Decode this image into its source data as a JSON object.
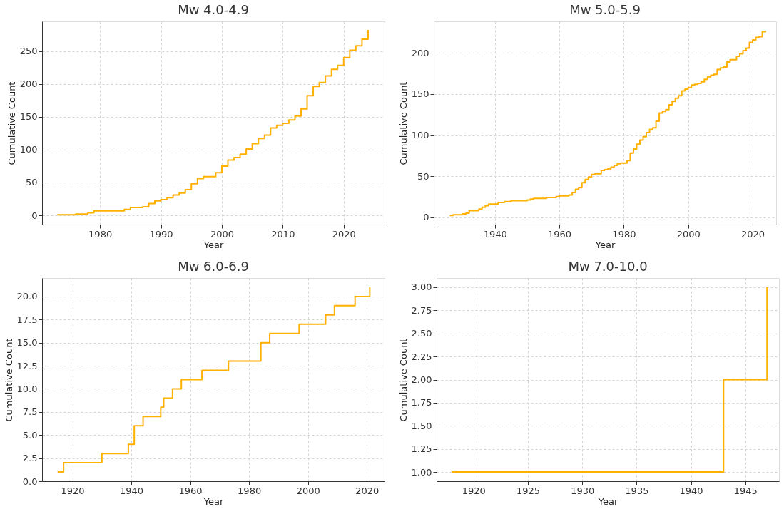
{
  "chart_data": [
    {
      "type": "step",
      "title": "Mw 4.0-4.9",
      "xlabel": "Year",
      "ylabel": "Cumulative Count",
      "color": "#ffb000",
      "grid": true,
      "x": [
        1973,
        1976,
        1978,
        1979,
        1984,
        1985,
        1987,
        1988,
        1989,
        1990,
        1991,
        1992,
        1993,
        1994,
        1995,
        1996,
        1997,
        1999,
        2000,
        2001,
        2002,
        2003,
        2004,
        2005,
        2006,
        2007,
        2008,
        2009,
        2010,
        2011,
        2012,
        2013,
        2014,
        2015,
        2016,
        2017,
        2018,
        2019,
        2020,
        2021,
        2022,
        2023,
        2024
      ],
      "values": [
        1,
        2,
        4,
        7,
        9,
        12,
        13,
        18,
        22,
        24,
        27,
        31,
        34,
        39,
        48,
        56,
        59,
        65,
        75,
        84,
        88,
        93,
        101,
        109,
        117,
        122,
        133,
        137,
        140,
        145,
        151,
        162,
        182,
        196,
        202,
        212,
        222,
        228,
        240,
        251,
        258,
        268,
        282
      ],
      "xlim": [
        1970.5,
        2026.7
      ],
      "ylim": [
        -14,
        295
      ],
      "xticks": [
        1980,
        1990,
        2000,
        2010,
        2020
      ],
      "yticks": [
        0,
        50,
        100,
        150,
        200,
        250
      ]
    },
    {
      "type": "step",
      "title": "Mw 5.0-5.9",
      "xlabel": "Year",
      "ylabel": "Cumulative Count",
      "color": "#ffb000",
      "grid": true,
      "x": [
        1926,
        1927,
        1930,
        1931,
        1932,
        1935,
        1936,
        1937,
        1938,
        1941,
        1943,
        1945,
        1950,
        1951,
        1952,
        1956,
        1959,
        1960,
        1963,
        1964,
        1965,
        1966,
        1967,
        1968,
        1969,
        1970,
        1971,
        1973,
        1974,
        1975,
        1976,
        1977,
        1978,
        1979,
        1981,
        1982,
        1983,
        1984,
        1985,
        1986,
        1987,
        1988,
        1989,
        1990,
        1991,
        1992,
        1993,
        1994,
        1995,
        1996,
        1997,
        1998,
        1999,
        2000,
        2001,
        2002,
        2003,
        2004,
        2005,
        2006,
        2007,
        2008,
        2009,
        2010,
        2011,
        2012,
        2013,
        2015,
        2016,
        2017,
        2018,
        2019,
        2020,
        2021,
        2022,
        2023,
        2024
      ],
      "values": [
        2,
        3,
        4,
        5,
        8,
        10,
        12,
        14,
        16,
        18,
        19,
        20,
        21,
        22,
        23,
        24,
        25,
        26,
        27,
        30,
        34,
        36,
        42,
        46,
        49,
        52,
        53,
        57,
        58,
        59,
        61,
        63,
        65,
        66,
        69,
        78,
        83,
        89,
        94,
        98,
        103,
        107,
        109,
        117,
        127,
        129,
        131,
        137,
        141,
        145,
        148,
        154,
        156,
        158,
        161,
        162,
        163,
        165,
        168,
        171,
        173,
        174,
        180,
        182,
        183,
        189,
        192,
        196,
        199,
        203,
        206,
        213,
        216,
        219,
        220,
        226,
        227
      ],
      "xlim": [
        1921,
        2027.3
      ],
      "ylim": [
        -9,
        238.6
      ],
      "xticks": [
        1940,
        1960,
        1980,
        2000,
        2020
      ],
      "yticks": [
        0,
        50,
        100,
        150,
        200
      ]
    },
    {
      "type": "step",
      "title": "Mw 6.0-6.9",
      "xlabel": "Year",
      "ylabel": "Cumulative Count",
      "color": "#ffb000",
      "grid": true,
      "x": [
        1915,
        1917,
        1930,
        1939,
        1941,
        1944,
        1950,
        1951,
        1954,
        1957,
        1964,
        1973,
        1984,
        1987,
        1997,
        2006,
        2009,
        2016,
        2021
      ],
      "values": [
        1,
        2,
        3,
        4,
        6,
        7,
        8,
        9,
        10,
        11,
        12,
        13,
        15,
        16,
        17,
        18,
        19,
        20,
        21
      ],
      "xlim": [
        1909.7,
        2026.0
      ],
      "ylim": [
        0,
        22
      ],
      "xticks": [
        1920,
        1940,
        1960,
        1980,
        2000,
        2020
      ],
      "yticks": [
        {
          "value": 0,
          "label": "0.0"
        },
        {
          "value": 2.5,
          "label": "2.5"
        },
        {
          "value": 5,
          "label": "5.0"
        },
        {
          "value": 7.5,
          "label": "7.5"
        },
        {
          "value": 10,
          "label": "10.0"
        },
        {
          "value": 12.5,
          "label": "12.5"
        },
        {
          "value": 15,
          "label": "15.0"
        },
        {
          "value": 17.5,
          "label": "17.5"
        },
        {
          "value": 20,
          "label": "20.0"
        }
      ]
    },
    {
      "type": "step",
      "title": "Mw 7.0-10.0",
      "xlabel": "Year",
      "ylabel": "Cumulative Count",
      "color": "#ffb000",
      "grid": true,
      "x": [
        1918,
        1943,
        1947
      ],
      "values": [
        1,
        2,
        3
      ],
      "xlim": [
        1916.6,
        1948.1
      ],
      "ylim": [
        0.9,
        3.1
      ],
      "xticks": [
        1920,
        1925,
        1930,
        1935,
        1940,
        1945
      ],
      "yticks": [
        {
          "value": 1,
          "label": "1.00"
        },
        {
          "value": 1.25,
          "label": "1.25"
        },
        {
          "value": 1.5,
          "label": "1.50"
        },
        {
          "value": 1.75,
          "label": "1.75"
        },
        {
          "value": 2,
          "label": "2.00"
        },
        {
          "value": 2.25,
          "label": "2.25"
        },
        {
          "value": 2.5,
          "label": "2.50"
        },
        {
          "value": 2.75,
          "label": "2.75"
        },
        {
          "value": 3,
          "label": "3.00"
        }
      ]
    }
  ]
}
